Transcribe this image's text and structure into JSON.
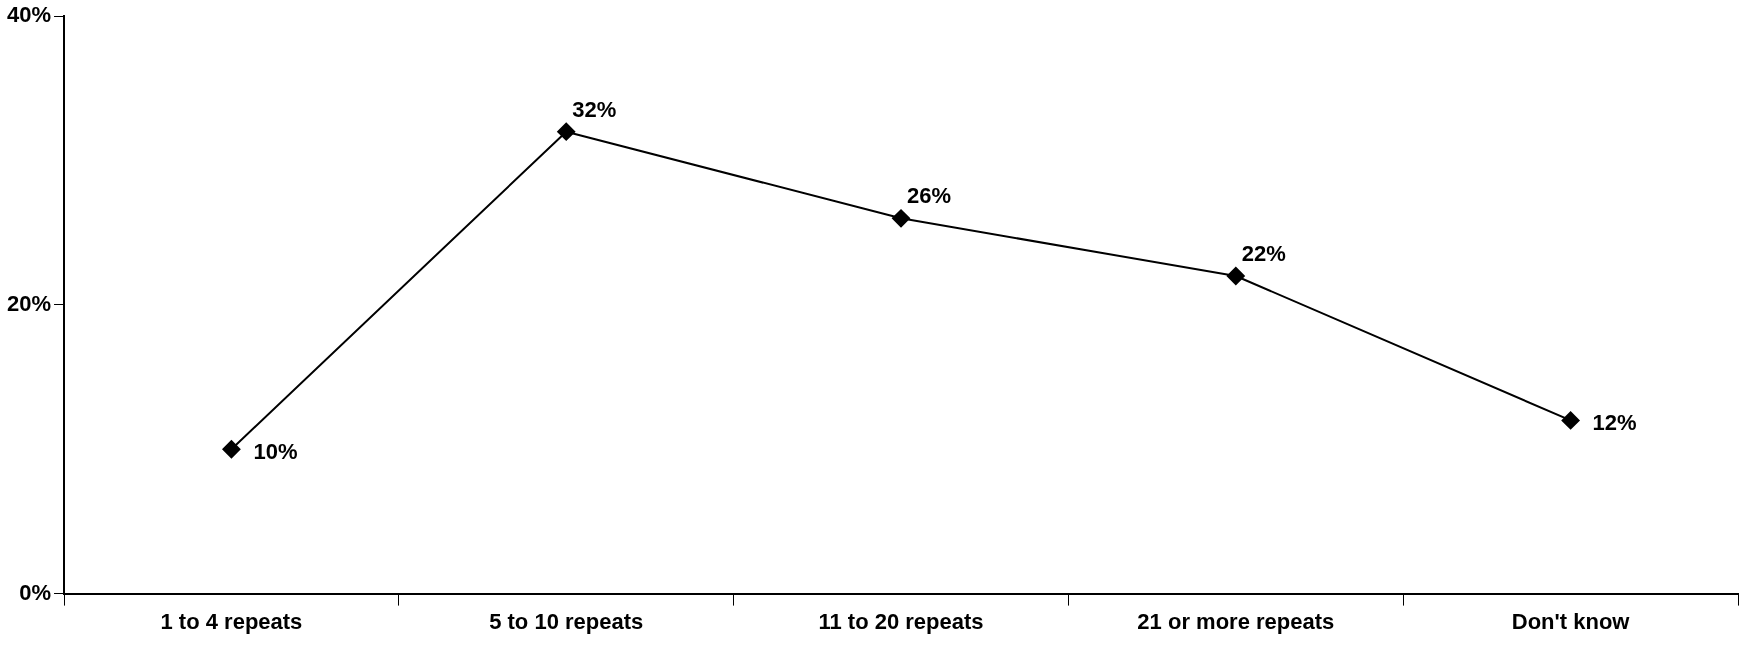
{
  "chart_data": {
    "type": "line",
    "categories": [
      "1 to 4 repeats",
      "5 to 10 repeats",
      "11 to 20 repeats",
      "21 or more repeats",
      "Don't know"
    ],
    "values": [
      10,
      32,
      26,
      22,
      12
    ],
    "value_labels": [
      "10%",
      "32%",
      "26%",
      "22%",
      "12%"
    ],
    "color": "#000000",
    "marker": "diamond",
    "ylim": [
      0,
      40
    ],
    "yticks": [
      {
        "value": 0,
        "label": "0%"
      },
      {
        "value": 20,
        "label": "20%"
      },
      {
        "value": 40,
        "label": "40%"
      }
    ],
    "grid": false,
    "legend": false
  }
}
